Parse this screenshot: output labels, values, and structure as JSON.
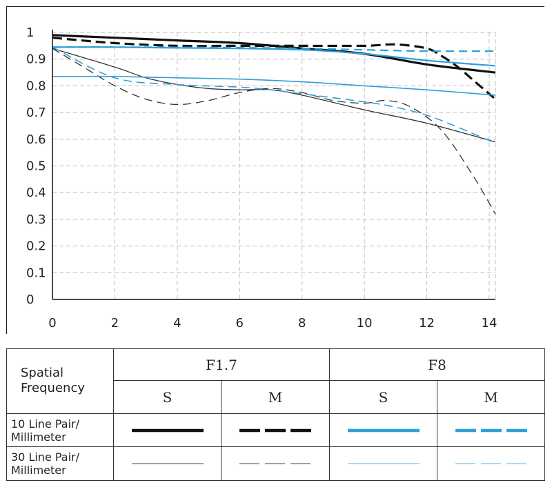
{
  "chart_data": {
    "type": "line",
    "xlim": [
      0,
      14.2
    ],
    "ylim": [
      0,
      1
    ],
    "x_ticks": [
      "0",
      "2",
      "4",
      "6",
      "8",
      "10",
      "12",
      "14"
    ],
    "y_ticks": [
      "0",
      "0.1",
      "0.2",
      "0.3",
      "0.4",
      "0.5",
      "0.6",
      "0.7",
      "0.8",
      "0.9",
      "1"
    ],
    "grid": true,
    "series": [
      {
        "aperture": "F1.7",
        "orientation": "S",
        "frequency": "10",
        "color": "#111111",
        "dash": "solid",
        "width": 3.2,
        "x": [
          0,
          2,
          4,
          6,
          8,
          10,
          12,
          14.2
        ],
        "y": [
          0.99,
          0.98,
          0.97,
          0.96,
          0.94,
          0.92,
          0.88,
          0.85
        ]
      },
      {
        "aperture": "F1.7",
        "orientation": "M",
        "frequency": "10",
        "color": "#111111",
        "dash": "dashed",
        "width": 3.2,
        "x": [
          0,
          2,
          4,
          6,
          8,
          10,
          11,
          12,
          12.5,
          13,
          13.5,
          14,
          14.2
        ],
        "y": [
          0.98,
          0.96,
          0.95,
          0.95,
          0.95,
          0.95,
          0.955,
          0.94,
          0.91,
          0.87,
          0.82,
          0.77,
          0.75
        ]
      },
      {
        "aperture": "F1.7",
        "orientation": "S",
        "frequency": "30",
        "color": "#333333",
        "dash": "solid",
        "width": 1.3,
        "x": [
          0,
          2,
          3,
          4,
          5,
          6,
          7,
          8,
          10,
          12,
          14.2
        ],
        "y": [
          0.94,
          0.87,
          0.83,
          0.805,
          0.79,
          0.785,
          0.785,
          0.765,
          0.71,
          0.66,
          0.59
        ]
      },
      {
        "aperture": "F1.7",
        "orientation": "M",
        "frequency": "30",
        "color": "#333333",
        "dash": "dashed",
        "width": 1.3,
        "x": [
          0,
          1,
          2,
          3,
          4,
          5,
          6,
          7,
          8,
          9,
          10,
          10.7,
          11.5,
          12.5,
          13.5,
          14.2
        ],
        "y": [
          0.94,
          0.87,
          0.8,
          0.75,
          0.73,
          0.745,
          0.775,
          0.79,
          0.775,
          0.745,
          0.735,
          0.745,
          0.72,
          0.63,
          0.46,
          0.32
        ]
      },
      {
        "aperture": "F8",
        "orientation": "S",
        "frequency": "10",
        "color": "#2f9fd8",
        "dash": "solid",
        "width": 2.2,
        "x": [
          0,
          2,
          4,
          6,
          8,
          10,
          12,
          14.2
        ],
        "y": [
          0.945,
          0.945,
          0.942,
          0.94,
          0.935,
          0.92,
          0.895,
          0.875
        ]
      },
      {
        "aperture": "F8",
        "orientation": "M",
        "frequency": "10",
        "color": "#2f9fd8",
        "dash": "dashed",
        "width": 2.2,
        "x": [
          0,
          2,
          4,
          6,
          8,
          10,
          12,
          14.2
        ],
        "y": [
          0.945,
          0.945,
          0.944,
          0.943,
          0.94,
          0.935,
          0.93,
          0.93
        ]
      },
      {
        "aperture": "F8",
        "orientation": "S",
        "frequency": "30",
        "color": "#2f9fd8",
        "dash": "solid",
        "width": 1.6,
        "x": [
          0,
          2,
          4,
          6,
          8,
          10,
          12,
          14.2
        ],
        "y": [
          0.835,
          0.835,
          0.83,
          0.825,
          0.815,
          0.8,
          0.785,
          0.765
        ]
      },
      {
        "aperture": "F8",
        "orientation": "M",
        "frequency": "30",
        "color": "#2f9fd8",
        "dash": "dashed",
        "width": 1.6,
        "x": [
          0,
          2,
          4,
          6,
          7,
          8,
          10,
          11,
          12,
          13,
          14.2
        ],
        "y": [
          0.945,
          0.83,
          0.805,
          0.795,
          0.785,
          0.77,
          0.74,
          0.72,
          0.69,
          0.645,
          0.585
        ]
      }
    ]
  },
  "legend": {
    "spatial_frequency_label": "Spatial\nFrequency",
    "apertures": [
      "F1.7",
      "F8"
    ],
    "orientations": [
      "S",
      "M",
      "S",
      "M"
    ],
    "rows": [
      {
        "label": "10 Line Pair/\nMillimeter"
      },
      {
        "label": "30 Line Pair/\nMillimeter"
      }
    ]
  }
}
